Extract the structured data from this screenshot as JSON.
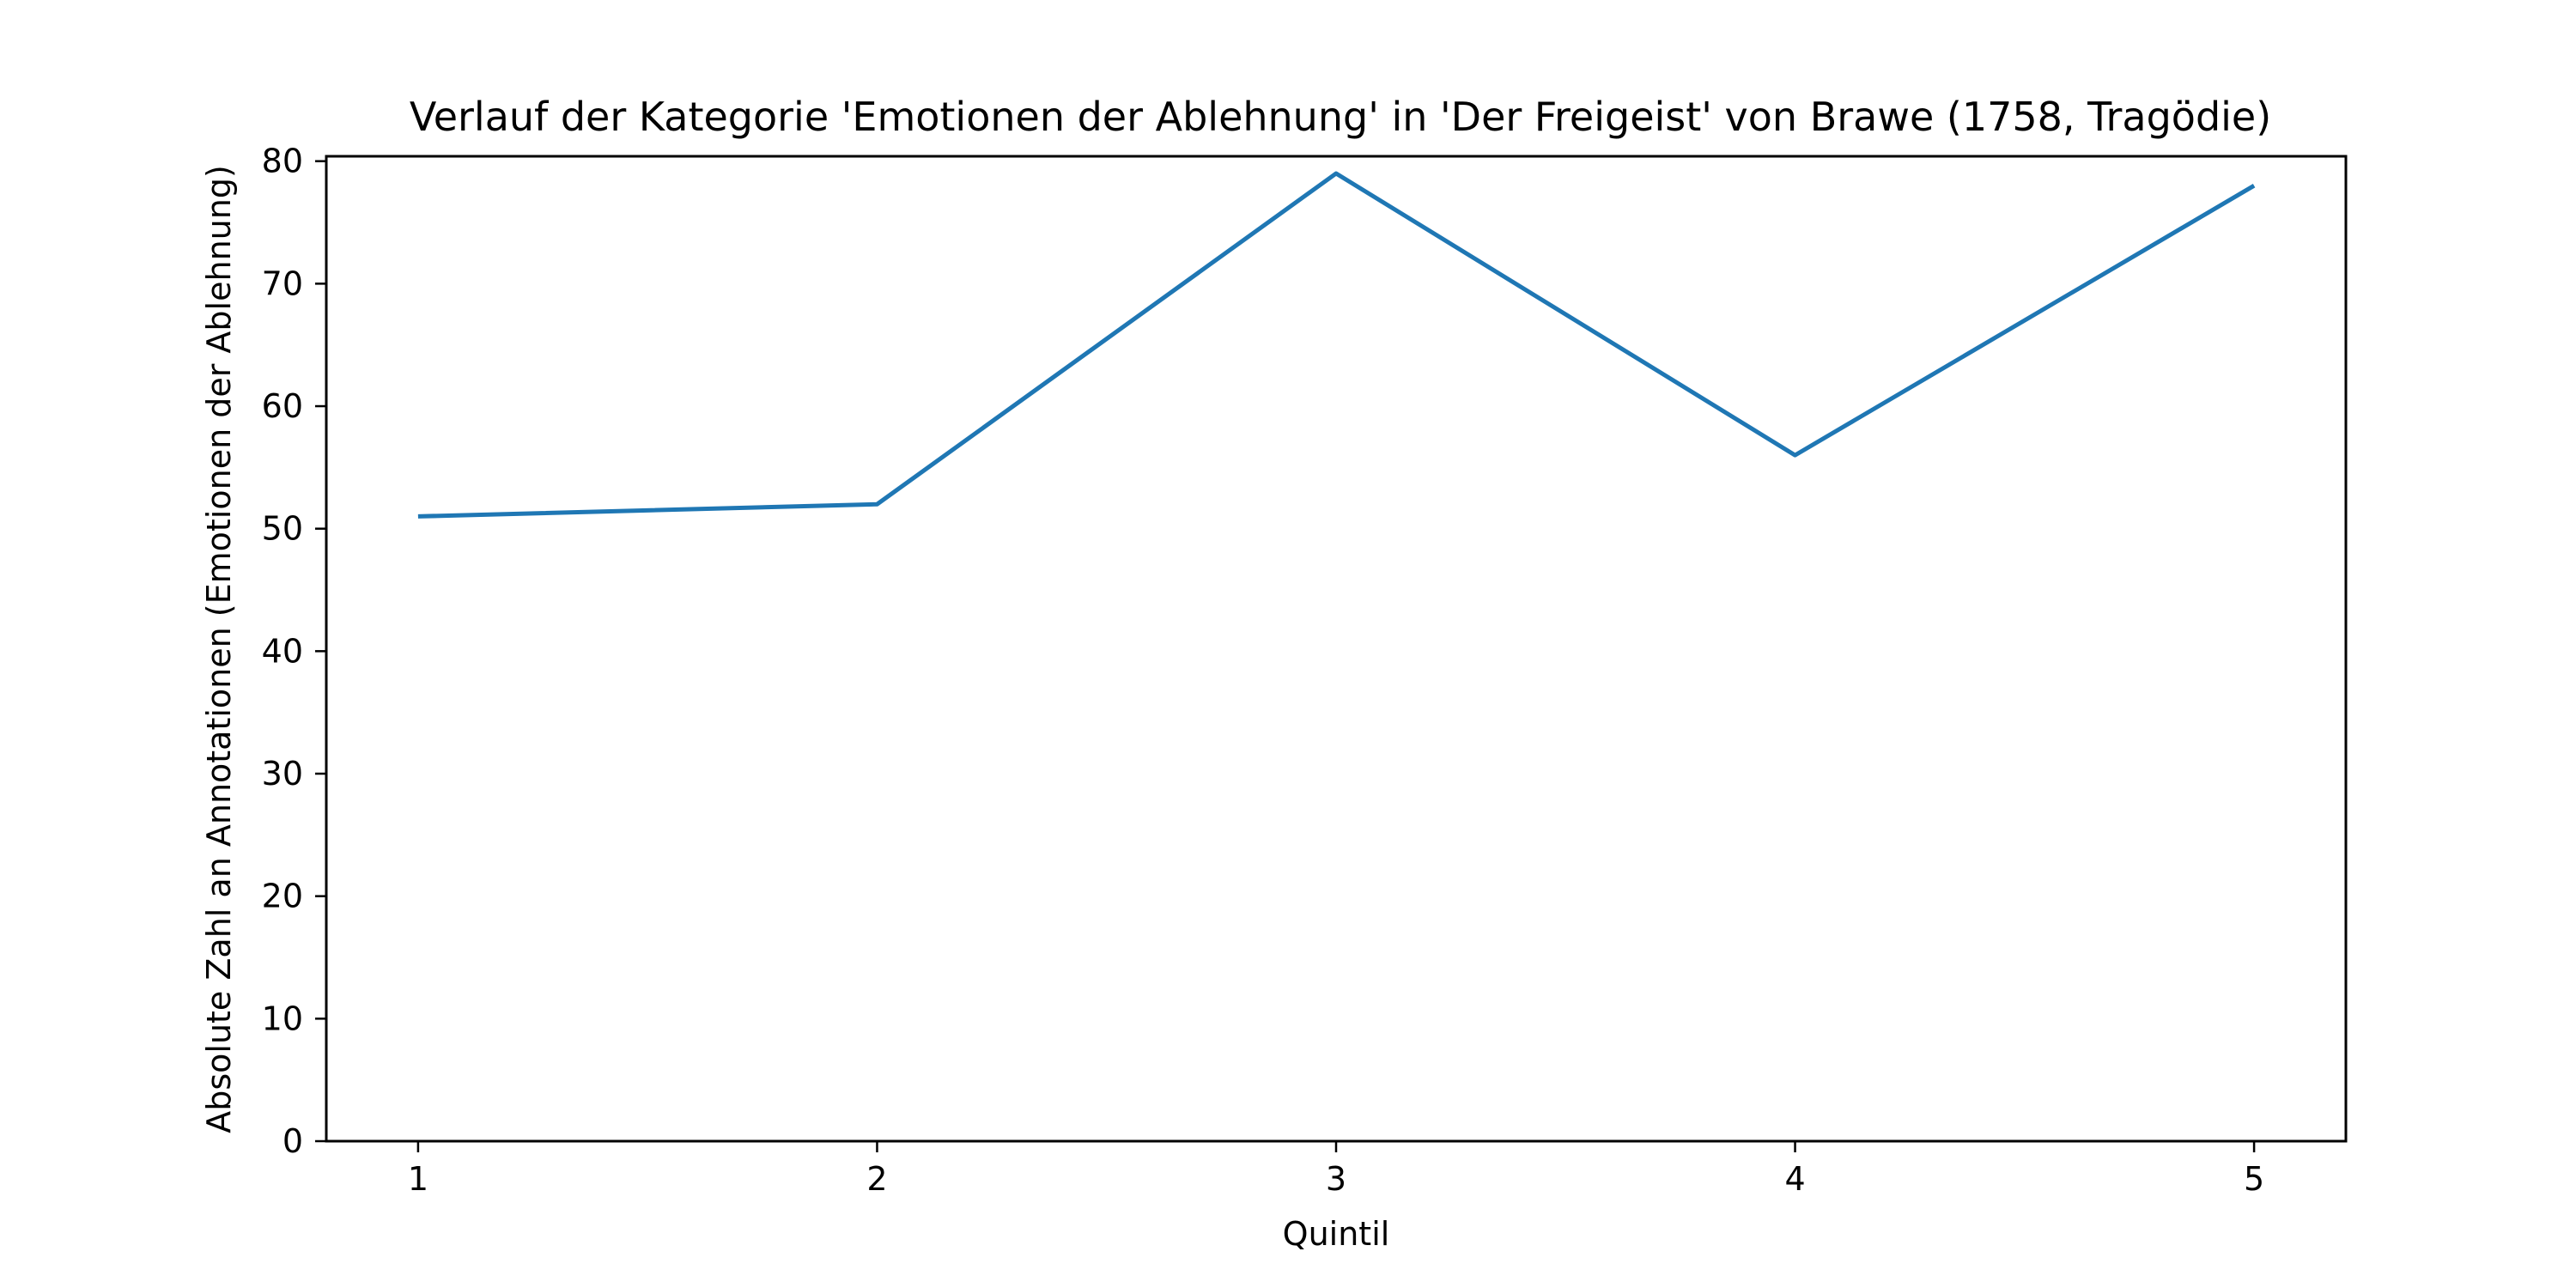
{
  "chart_data": {
    "type": "line",
    "title": "Verlauf der Kategorie 'Emotionen der Ablehnung' in 'Der Freigeist' von Brawe (1758, Tragödie)",
    "xlabel": "Quintil",
    "ylabel": "Absolute Zahl an Annotationen (Emotionen der Ablehnung)",
    "x": [
      1,
      2,
      3,
      4,
      5
    ],
    "x_ticks": [
      "1",
      "2",
      "3",
      "4",
      "5"
    ],
    "y_ticks": [
      "0",
      "10",
      "20",
      "30",
      "40",
      "50",
      "60",
      "70",
      "80"
    ],
    "xlim": [
      0.8,
      5.2
    ],
    "ylim": [
      0,
      80.4
    ],
    "grid": false,
    "series": [
      {
        "values": [
          51,
          52,
          79,
          56,
          78
        ],
        "color": "#1f77b4"
      }
    ]
  }
}
